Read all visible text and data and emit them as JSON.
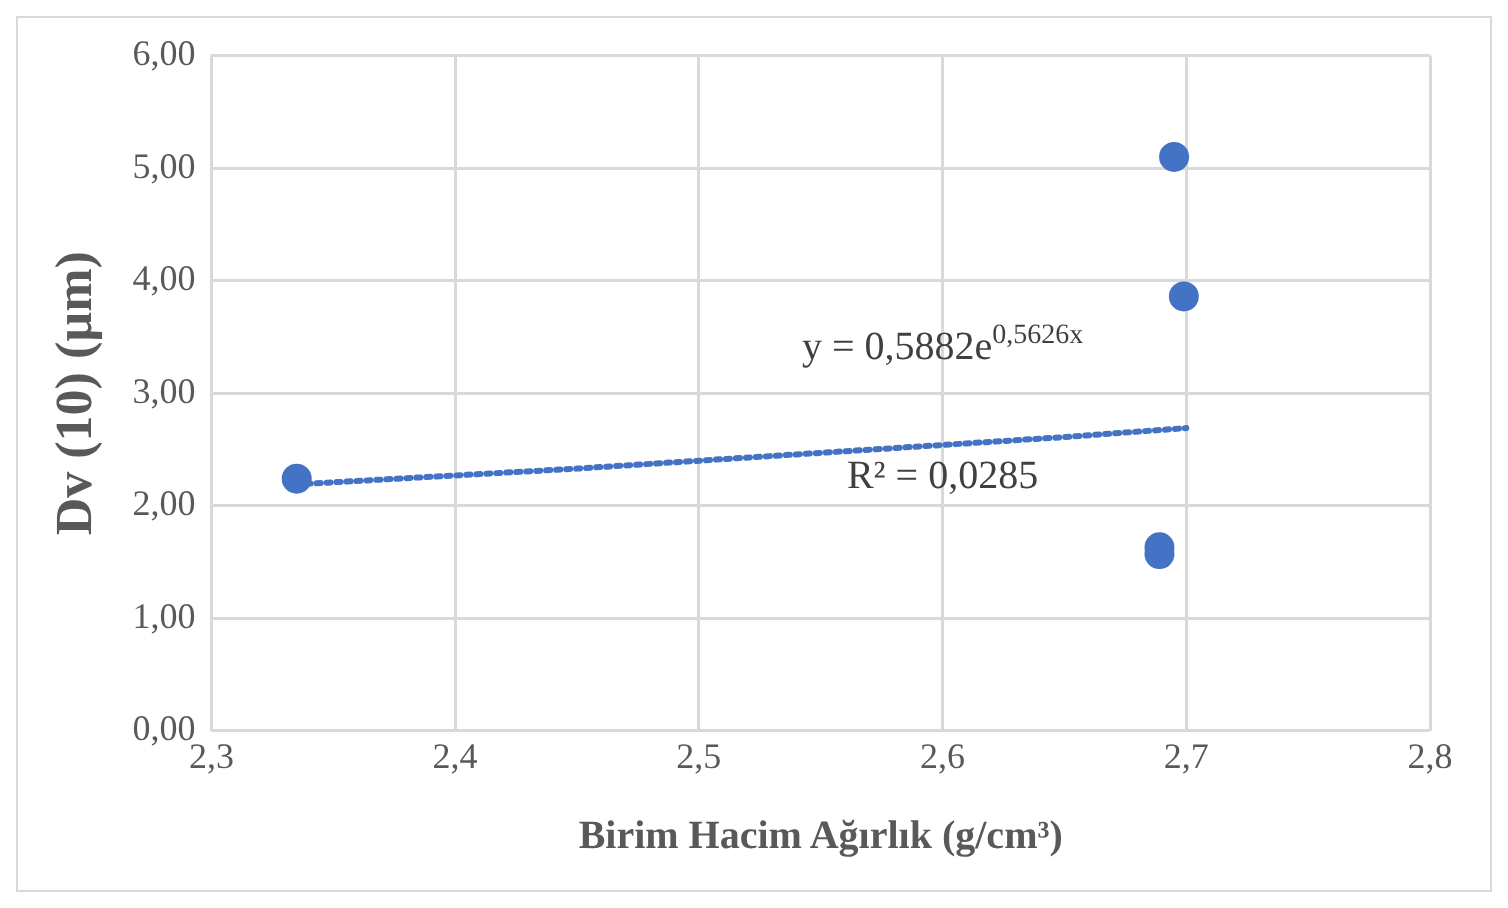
{
  "chart_data": {
    "type": "scatter",
    "xlabel": "Birim Hacim Ağırlık (g/cm³)",
    "ylabel": "Dv (10) (µm)",
    "xlim": [
      2.3,
      2.8
    ],
    "xticks": [
      {
        "value": 2.3,
        "label": "2,3"
      },
      {
        "value": 2.4,
        "label": "2,4"
      },
      {
        "value": 2.5,
        "label": "2,5"
      },
      {
        "value": 2.6,
        "label": "2,6"
      },
      {
        "value": 2.7,
        "label": "2,7"
      },
      {
        "value": 2.8,
        "label": "2,8"
      }
    ],
    "ylim": [
      0,
      6
    ],
    "yticks": [
      {
        "value": 0,
        "label": "0,00"
      },
      {
        "value": 1,
        "label": "1,00"
      },
      {
        "value": 2,
        "label": "2,00"
      },
      {
        "value": 3,
        "label": "3,00"
      },
      {
        "value": 4,
        "label": "4,00"
      },
      {
        "value": 5,
        "label": "5,00"
      },
      {
        "value": 6,
        "label": "6,00"
      }
    ],
    "grid": true,
    "legend": false,
    "marker": "circle",
    "series": [
      {
        "type": "scatter",
        "color": "#4472c4",
        "x": [
          2.335,
          2.695,
          2.699,
          2.689,
          2.689
        ],
        "values": [
          2.24,
          5.1,
          3.86,
          1.63,
          1.57
        ]
      },
      {
        "type": "line",
        "color": "#4472c4",
        "line_style": "dotted",
        "marker": "none",
        "x": [
          2.335,
          2.45,
          2.55,
          2.65,
          2.7
        ],
        "values": [
          2.19,
          2.33,
          2.47,
          2.61,
          2.69
        ]
      }
    ],
    "annotations": [
      "y = 0,5882e$^{0,5626x}$",
      "R² = 0,0285"
    ]
  }
}
